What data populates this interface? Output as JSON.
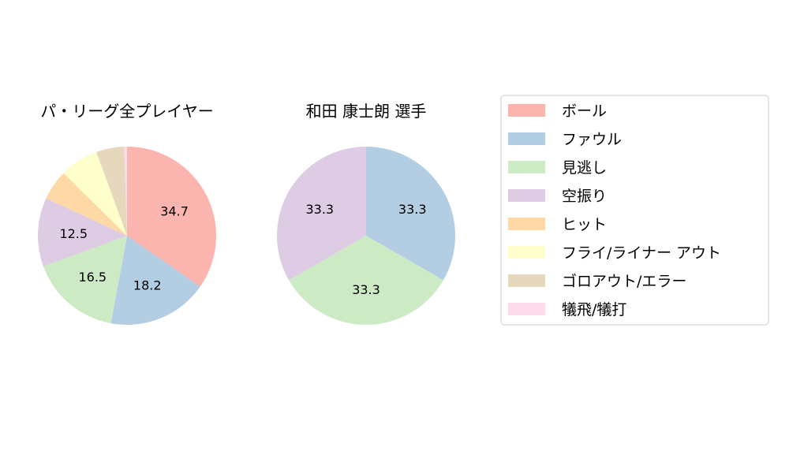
{
  "categories": [
    "ボール",
    "ファウル",
    "見逃し",
    "空振り",
    "ヒット",
    "フライ/ライナー アウト",
    "ゴロアウト/エラー",
    "犠飛/犠打"
  ],
  "colors": [
    "#fbb4ae",
    "#b3cde3",
    "#ccebc5",
    "#decbe4",
    "#fed9a6",
    "#ffffcc",
    "#e5d8bd",
    "#fddaec"
  ],
  "chart_data": [
    {
      "type": "pie",
      "title": "パ・リーグ全プレイヤー",
      "categories": [
        "ボール",
        "ファウル",
        "見逃し",
        "空振り",
        "ヒット",
        "フライ/ライナー アウト",
        "ゴロアウト/エラー",
        "犠飛/犠打"
      ],
      "values": [
        34.7,
        18.2,
        16.5,
        12.5,
        5.5,
        7.0,
        5.1,
        0.5
      ],
      "labels": [
        "34.7",
        "18.2",
        "16.5",
        "12.5",
        "",
        "",
        "",
        ""
      ]
    },
    {
      "type": "pie",
      "title": "和田 康士朗  選手",
      "categories": [
        "ボール",
        "ファウル",
        "見逃し",
        "空振り",
        "ヒット",
        "フライ/ライナー アウト",
        "ゴロアウト/エラー",
        "犠飛/犠打"
      ],
      "values": [
        0,
        33.3,
        33.3,
        33.3,
        0,
        0,
        0,
        0
      ],
      "labels": [
        "",
        "33.3",
        "33.3",
        "33.3",
        "",
        "",
        "",
        ""
      ]
    }
  ],
  "legend": {
    "placement": "right",
    "items": [
      "ボール",
      "ファウル",
      "見逃し",
      "空振り",
      "ヒット",
      "フライ/ライナー アウト",
      "ゴロアウト/エラー",
      "犠飛/犠打"
    ]
  }
}
